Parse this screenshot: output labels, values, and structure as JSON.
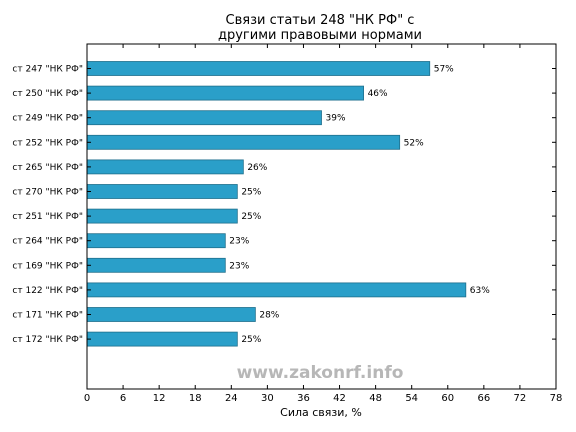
{
  "chart_data": {
    "type": "bar",
    "orientation": "horizontal",
    "title_lines": [
      "Связи статьи 248 \"НК РФ\" с",
      "другими правовыми нормами"
    ],
    "categories": [
      "ст 247 \"НК РФ\"",
      "ст 250 \"НК РФ\"",
      "ст 249 \"НК РФ\"",
      "ст 252 \"НК РФ\"",
      "ст 265 \"НК РФ\"",
      "ст 270 \"НК РФ\"",
      "ст 251 \"НК РФ\"",
      "ст 264 \"НК РФ\"",
      "ст 169 \"НК РФ\"",
      "ст 122 \"НК РФ\"",
      "ст 171 \"НК РФ\"",
      "ст 172 \"НК РФ\""
    ],
    "values": [
      57,
      46,
      39,
      52,
      26,
      25,
      25,
      23,
      23,
      63,
      28,
      25
    ],
    "value_labels": [
      "57%",
      "46%",
      "39%",
      "52%",
      "26%",
      "25%",
      "25%",
      "23%",
      "23%",
      "63%",
      "28%",
      "25%"
    ],
    "xlabel": "Сила связи, %",
    "xlim": [
      0,
      78
    ],
    "xticks": [
      0,
      6,
      12,
      18,
      24,
      30,
      36,
      42,
      48,
      54,
      60,
      66,
      72,
      78
    ],
    "grid": false,
    "bar_color": "#2a9fc9",
    "bar_edge_color": "#1f6f8c",
    "watermark": "www.zakonrf.info"
  }
}
